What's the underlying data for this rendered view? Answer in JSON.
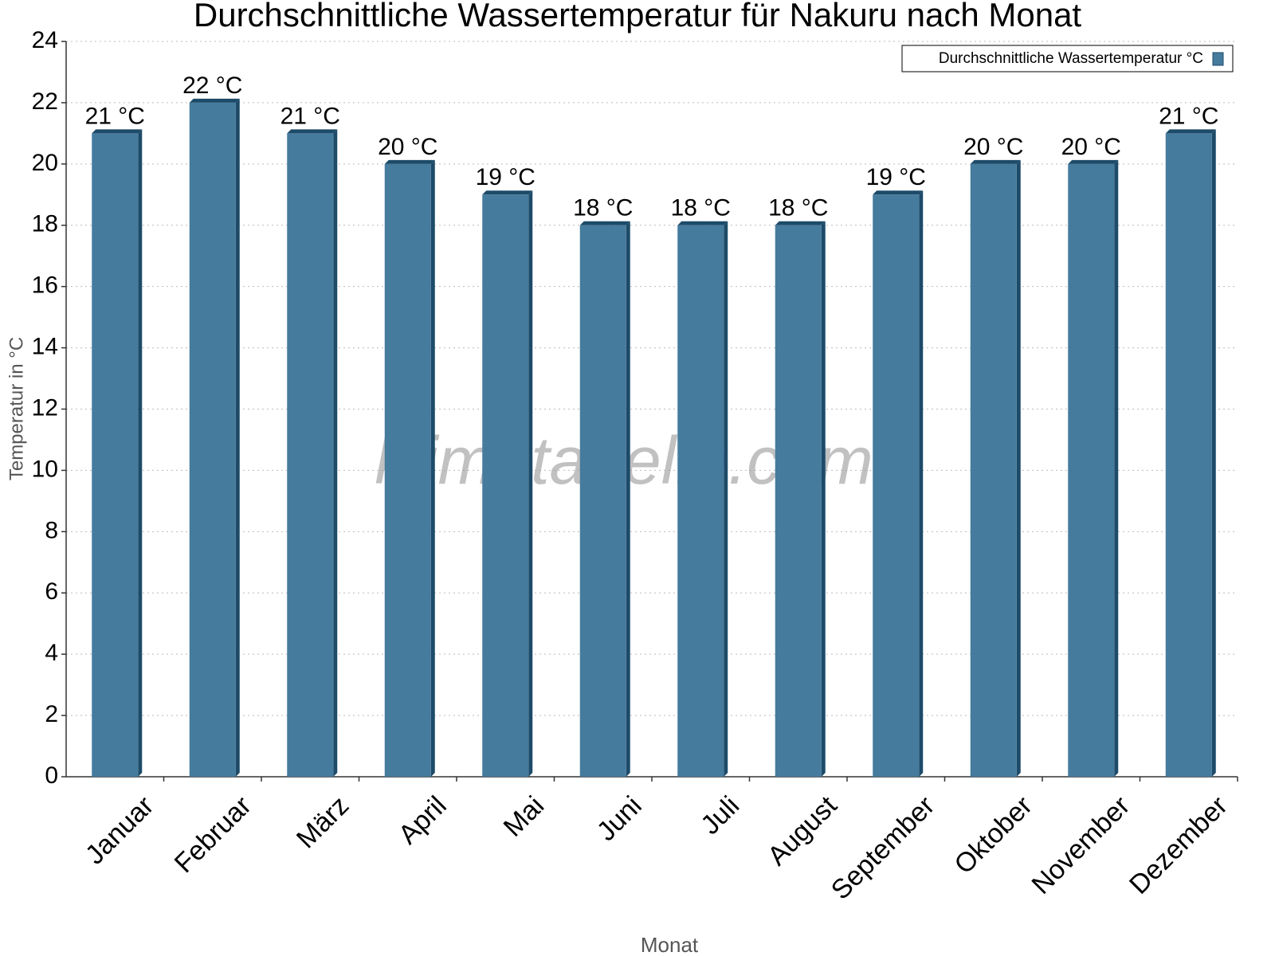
{
  "chart_data": {
    "type": "bar",
    "title": "Durchschnittliche Wassertemperatur für Nakuru nach Monat",
    "x_label": "Monat",
    "y_label": "Temperatur in °C",
    "watermark": "klimatabelle.com",
    "categories": [
      "Januar",
      "Februar",
      "März",
      "April",
      "Mai",
      "Juni",
      "Juli",
      "August",
      "September",
      "Oktober",
      "November",
      "Dezember"
    ],
    "series": [
      {
        "name": "Durchschnittliche Wassertemperatur °C",
        "color": "#457b9d",
        "values": [
          21,
          22,
          21,
          20,
          19,
          18,
          18,
          18,
          19,
          20,
          20,
          21
        ],
        "value_labels": [
          "21 °C",
          "22 °C",
          "21 °C",
          "20 °C",
          "19 °C",
          "18 °C",
          "18 °C",
          "18 °C",
          "19 °C",
          "20 °C",
          "20 °C",
          "21 °C"
        ]
      }
    ],
    "ylim": [
      0,
      24
    ],
    "yticks": [
      0,
      2,
      4,
      6,
      8,
      10,
      12,
      14,
      16,
      18,
      20,
      22,
      24
    ],
    "grid": true,
    "legend": "top-right"
  }
}
